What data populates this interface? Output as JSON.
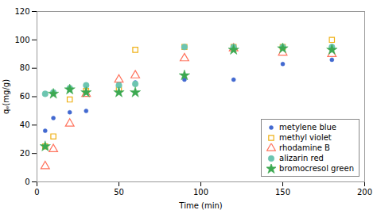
{
  "chart_data": {
    "type": "scatter",
    "x": [
      5,
      10,
      20,
      30,
      50,
      60,
      90,
      120,
      150,
      180
    ],
    "series": [
      {
        "name": "metylene blue",
        "marker": "dot",
        "values": [
          36,
          45,
          49,
          50,
          70,
          70,
          72,
          72,
          83,
          86
        ]
      },
      {
        "name": "methyl violet",
        "marker": "open square",
        "values": [
          25,
          32,
          58,
          64,
          65,
          93,
          95,
          95,
          95,
          100
        ]
      },
      {
        "name": "rhodamine B",
        "marker": "open triangle",
        "values": [
          11,
          23,
          41,
          62,
          72,
          75,
          87,
          94,
          91,
          90
        ]
      },
      {
        "name": "alizarin red",
        "marker": "circle",
        "values": [
          62,
          63,
          66,
          68,
          68,
          69,
          95,
          95,
          95,
          95
        ]
      },
      {
        "name": "bromocresol green",
        "marker": "star",
        "values": [
          25,
          62,
          65,
          63,
          63,
          63,
          75,
          93,
          94,
          93
        ]
      }
    ],
    "xlabel": "Time (min)",
    "ylabel": "qₑ(mg/g)",
    "xlim": [
      0,
      200
    ],
    "ylim": [
      0,
      120
    ],
    "xticks": [
      0,
      50,
      100,
      150,
      200
    ],
    "yticks": [
      0,
      20,
      40,
      60,
      80,
      100,
      120
    ],
    "legend": "lower right"
  }
}
